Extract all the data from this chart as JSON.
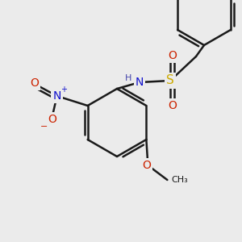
{
  "background_color": "#ebebeb",
  "bond_color": "#1a1a1a",
  "bond_width": 1.8,
  "figsize": [
    3.0,
    3.0
  ],
  "dpi": 100,
  "colors": {
    "C": "#1a1a1a",
    "N": "#1010cc",
    "O": "#cc2200",
    "S": "#ccaa00",
    "H": "#4444aa"
  },
  "font_size": 10,
  "font_size_small": 8,
  "font_size_super": 7
}
